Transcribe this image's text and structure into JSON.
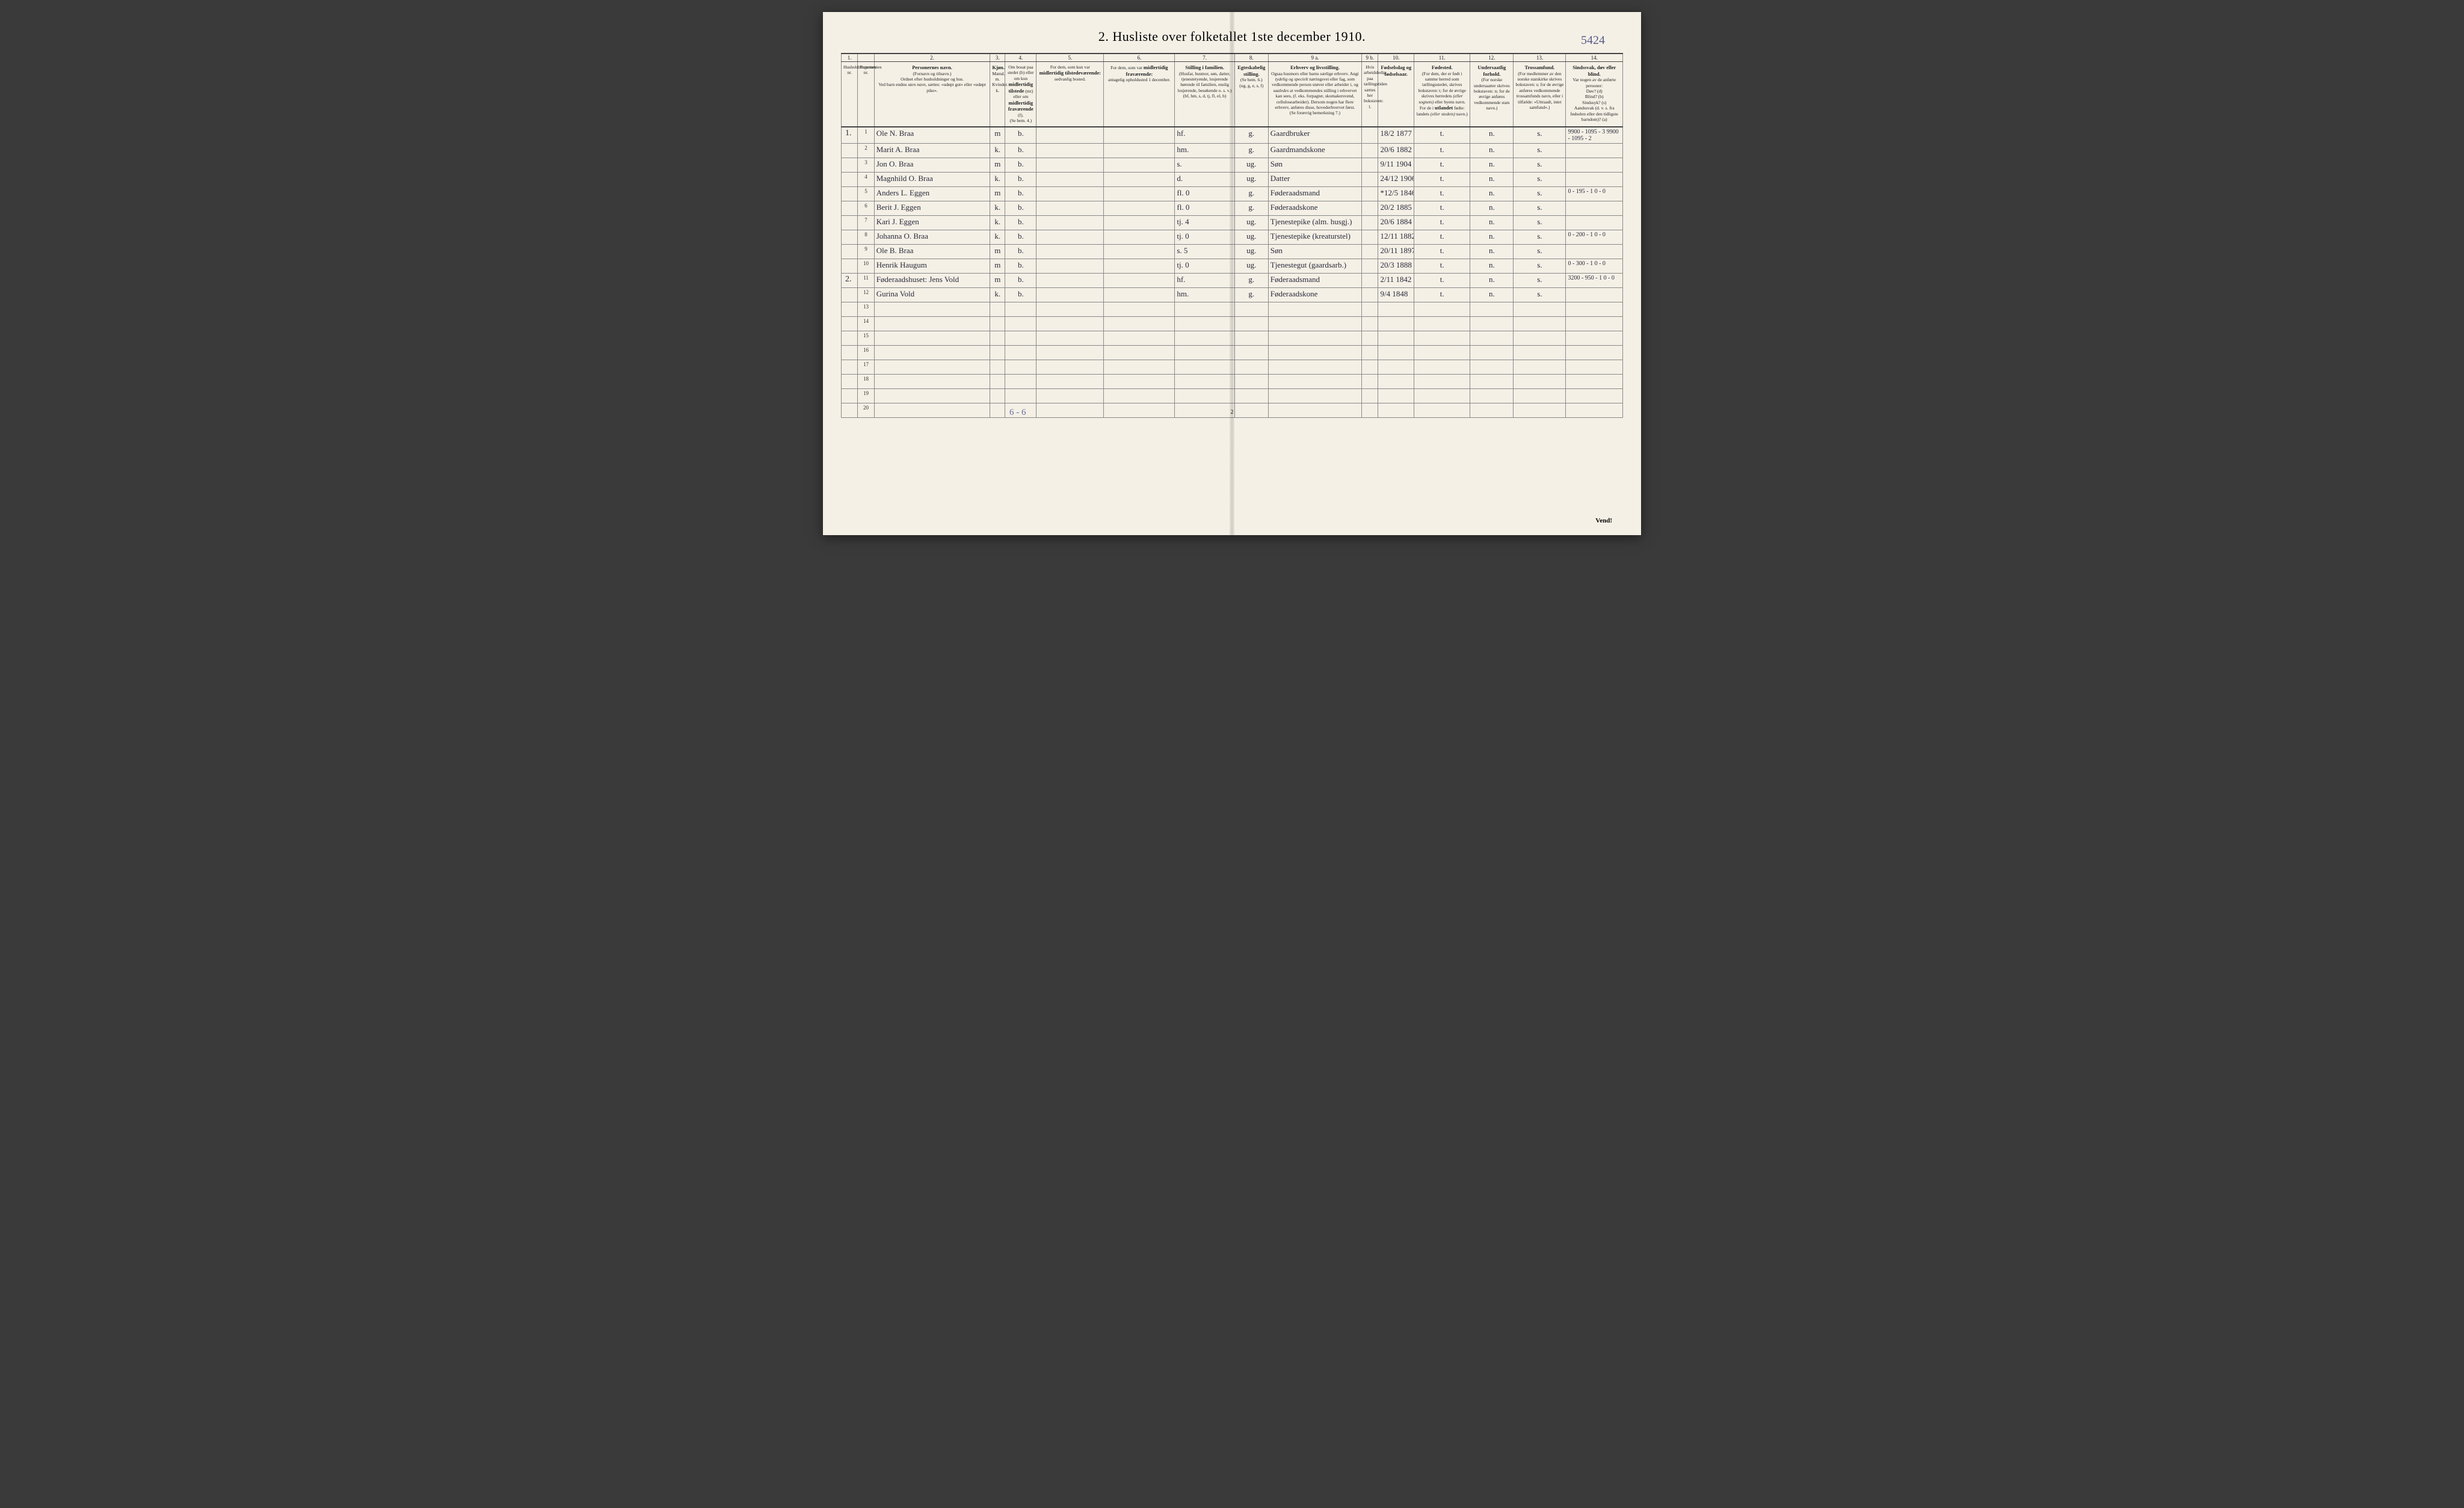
{
  "title": "2.  Husliste over folketallet 1ste december 1910.",
  "page_annotation": "5424",
  "footer": "Vend!",
  "bottom_page_num": "2",
  "tally": "6 - 6",
  "colors": {
    "paper": "#f4f0e6",
    "ink": "#222222",
    "rule": "#888888",
    "handwriting": "#2a2a3a",
    "pencil": "#6a6aa0"
  },
  "col_widths_pct": [
    2.2,
    2.2,
    15.5,
    2.0,
    4.2,
    9.0,
    9.5,
    8.0,
    4.5,
    12.5,
    2.2,
    4.8,
    7.5,
    5.8,
    7.0,
    7.6
  ],
  "column_numbers": [
    "1.",
    "",
    "2.",
    "3.",
    "4.",
    "5.",
    "6.",
    "7.",
    "8.",
    "9 a.",
    "9 b.",
    "10.",
    "11.",
    "12.",
    "13.",
    "14."
  ],
  "headers": [
    {
      "html": "Husholdningernes nr."
    },
    {
      "html": "Personernes nr."
    },
    {
      "html": "<strong>Personernes navn.</strong><br>(Fornavn og tilnavn.)<br>Ordnet efter husholdninger og hus.<br>Ved barn endnu <em>uten navn</em>, sættes: «udøpt gut» eller «udøpt pike»."
    },
    {
      "html": "<strong>Kjøn.</strong><br>Mænd. m.<br>Kvinder. k."
    },
    {
      "html": "Om bosat paa stedet (b) eller om kun <strong>midlertidig tilstede</strong> (mt) eller om <strong>midlertidig fraværende</strong> (f).<br>(Se bem. 4.)"
    },
    {
      "html": "For dem, som kun var <strong>midlertidig tilstedeværende:</strong><br>sedvanlig bosted."
    },
    {
      "html": "For dem, som var <strong>midlertidig fraværende:</strong><br>antagelig opholdssted 1 december."
    },
    {
      "html": "<strong>Stilling i familien.</strong><br>(Husfar, husmor, søn, datter, tjenestetyende, losjerende hørende til familien, enslig losjerende, besøkende o. s. v.)<br>(hf, hm, s, d, tj, fl, el, b)"
    },
    {
      "html": "<strong>Egteskabelig stilling.</strong><br>(Se bem. 6.)<br>(ug, g, e, s, f)"
    },
    {
      "html": "<strong>Erhverv og livsstilling.</strong><br>Ogsaa husmors eller barns særlige erhverv. Angi <em>tydelig og specielt</em> næringsvei eller fag, som vedkommende person utøver eller arbeider i, og <em>saaledes</em> at vedkommendes stilling i erhvervet kan sees, (f. eks. forpagter, skomakersvend, cellulosearbeider). Dersom nogen har flere erhverv, anføres disse, hovederhvervet først.<br>(Se forøvrig bemerkning 7.)"
    },
    {
      "html": "Hvis arbeidsledig paa tællingstiden sættes her bokstaven: l."
    },
    {
      "html": "<strong>Fødselsdag og fødselsaar.</strong>"
    },
    {
      "html": "<strong>Fødested.</strong><br>(For dem, der er født i samme herred som tællingsstedet, skrives bokstaven: t; for de øvrige skrives herredets <em>(eller sognets)</em> eller byens navn. For de i <strong>utlandet</strong> fødte: landets <em>(eller stedets)</em> navn.)"
    },
    {
      "html": "<strong>Undersaatlig forhold.</strong><br>(For norske undersaatter skrives bokstaven: n; for de øvrige anføres vedkommende stats navn.)"
    },
    {
      "html": "<strong>Trossamfund.</strong><br>(For medlemmer av den norske statskirke skrives bokstaven: s; for de øvrige anføres vedkommende trossamfunds navn, eller i tilfælde: «Uttraadt, intet samfund».)"
    },
    {
      "html": "<strong>Sindssvak, døv eller blind.</strong><br>Var nogen av de anførte personer:<br>Døv? (d)<br>Blind? (b)<br>Sindssyk? (s)<br>Aandssvak (d. v. s. fra fødselen eller den tidligste barndom)? (a)"
    }
  ],
  "rows": [
    {
      "hh": "1.",
      "n": "1",
      "name": "Ole N. Braa",
      "sex": "m",
      "res": "b.",
      "c5": "",
      "c6": "",
      "fam": "hf.",
      "mar": "g.",
      "occ": "Gaardbruker",
      "c9b": "",
      "dob": "18/2 1877",
      "birthpl": "t.",
      "nat": "n.",
      "rel": "s.",
      "c14": "9900 - 1095 - 3   9900 - 1095 - 2"
    },
    {
      "hh": "",
      "n": "2",
      "name": "Marit A. Braa",
      "sex": "k.",
      "res": "b.",
      "c5": "",
      "c6": "",
      "fam": "hm.",
      "mar": "g.",
      "occ": "Gaardmandskone",
      "c9b": "",
      "dob": "20/6 1882",
      "birthpl": "t.",
      "nat": "n.",
      "rel": "s.",
      "c14": ""
    },
    {
      "hh": "",
      "n": "3",
      "name": "Jon O. Braa",
      "sex": "m",
      "res": "b.",
      "c5": "",
      "c6": "",
      "fam": "s.",
      "mar": "ug.",
      "occ": "Søn",
      "c9b": "",
      "dob": "9/11 1904",
      "birthpl": "t.",
      "nat": "n.",
      "rel": "s.",
      "c14": ""
    },
    {
      "hh": "",
      "n": "4",
      "name": "Magnhild O. Braa",
      "sex": "k.",
      "res": "b.",
      "c5": "",
      "c6": "",
      "fam": "d.",
      "mar": "ug.",
      "occ": "Datter",
      "c9b": "",
      "dob": "24/12 1906",
      "birthpl": "t.",
      "nat": "n.",
      "rel": "s.",
      "c14": ""
    },
    {
      "hh": "",
      "n": "5",
      "name": "Anders L. Eggen",
      "sex": "m",
      "res": "b.",
      "c5": "",
      "c6": "",
      "fam": "fl.       0",
      "mar": "g.",
      "occ": "Føderaadsmand",
      "c9b": "",
      "dob": "*12/5 1846",
      "birthpl": "t.",
      "nat": "n.",
      "rel": "s.",
      "c14": "0 - 195 - 1   0 - 0"
    },
    {
      "hh": "",
      "n": "6",
      "name": "Berit J. Eggen",
      "sex": "k.",
      "res": "b.",
      "c5": "",
      "c6": "",
      "fam": "fl.       0",
      "mar": "g.",
      "occ": "Føderaadskone",
      "c9b": "",
      "dob": "20/2 1885",
      "birthpl": "t.",
      "nat": "n.",
      "rel": "s.",
      "c14": ""
    },
    {
      "hh": "",
      "n": "7",
      "name": "Kari J. Eggen",
      "sex": "k.",
      "res": "b.",
      "c5": "",
      "c6": "",
      "fam": "tj.       4",
      "mar": "ug.",
      "occ": "Tjenestepike (alm. husgj.)",
      "c9b": "",
      "dob": "20/6 1884",
      "birthpl": "t.",
      "nat": "n.",
      "rel": "s.",
      "c14": ""
    },
    {
      "hh": "",
      "n": "8",
      "name": "Johanna O. Braa",
      "sex": "k.",
      "res": "b.",
      "c5": "",
      "c6": "",
      "fam": "tj.       0",
      "mar": "ug.",
      "occ": "Tjenestepike (kreaturstel)",
      "c9b": "",
      "dob": "12/11 1882",
      "birthpl": "t.",
      "nat": "n.",
      "rel": "s.",
      "c14": "0 - 200 - 1   0 - 0"
    },
    {
      "hh": "",
      "n": "9",
      "name": "Ole B. Braa",
      "sex": "m",
      "res": "b.",
      "c5": "",
      "c6": "",
      "fam": "s.        5",
      "mar": "ug.",
      "occ": "Søn",
      "c9b": "",
      "dob": "20/11 1897",
      "birthpl": "t.",
      "nat": "n.",
      "rel": "s.",
      "c14": ""
    },
    {
      "hh": "",
      "n": "10",
      "name": "Henrik Haugum",
      "sex": "m",
      "res": "b.",
      "c5": "",
      "c6": "",
      "fam": "tj.       0",
      "mar": "ug.",
      "occ": "Tjenestegut (gaardsarb.)",
      "c9b": "",
      "dob": "20/3 1888",
      "birthpl": "t.",
      "nat": "n.",
      "rel": "s.",
      "c14": "0 - 300 - 1   0 - 0"
    },
    {
      "hh": "2.",
      "n": "11",
      "name": "Føderaadshuset: Jens Vold",
      "sex": "m",
      "res": "b.",
      "c5": "",
      "c6": "",
      "fam": "hf.",
      "mar": "g.",
      "occ": "Føderaadsmand",
      "c9b": "",
      "dob": "2/11 1842",
      "birthpl": "t.",
      "nat": "n.",
      "rel": "s.",
      "c14": "3200 - 950 - 1   0 - 0"
    },
    {
      "hh": "",
      "n": "12",
      "name": "Gurina Vold",
      "sex": "k.",
      "res": "b.",
      "c5": "",
      "c6": "",
      "fam": "hm.",
      "mar": "g.",
      "occ": "Føderaadskone",
      "c9b": "",
      "dob": "9/4 1848",
      "birthpl": "t.",
      "nat": "n.",
      "rel": "s.",
      "c14": ""
    },
    {
      "hh": "",
      "n": "13",
      "name": "",
      "sex": "",
      "res": "",
      "c5": "",
      "c6": "",
      "fam": "",
      "mar": "",
      "occ": "",
      "c9b": "",
      "dob": "",
      "birthpl": "",
      "nat": "",
      "rel": "",
      "c14": ""
    },
    {
      "hh": "",
      "n": "14",
      "name": "",
      "sex": "",
      "res": "",
      "c5": "",
      "c6": "",
      "fam": "",
      "mar": "",
      "occ": "",
      "c9b": "",
      "dob": "",
      "birthpl": "",
      "nat": "",
      "rel": "",
      "c14": ""
    },
    {
      "hh": "",
      "n": "15",
      "name": "",
      "sex": "",
      "res": "",
      "c5": "",
      "c6": "",
      "fam": "",
      "mar": "",
      "occ": "",
      "c9b": "",
      "dob": "",
      "birthpl": "",
      "nat": "",
      "rel": "",
      "c14": ""
    },
    {
      "hh": "",
      "n": "16",
      "name": "",
      "sex": "",
      "res": "",
      "c5": "",
      "c6": "",
      "fam": "",
      "mar": "",
      "occ": "",
      "c9b": "",
      "dob": "",
      "birthpl": "",
      "nat": "",
      "rel": "",
      "c14": ""
    },
    {
      "hh": "",
      "n": "17",
      "name": "",
      "sex": "",
      "res": "",
      "c5": "",
      "c6": "",
      "fam": "",
      "mar": "",
      "occ": "",
      "c9b": "",
      "dob": "",
      "birthpl": "",
      "nat": "",
      "rel": "",
      "c14": ""
    },
    {
      "hh": "",
      "n": "18",
      "name": "",
      "sex": "",
      "res": "",
      "c5": "",
      "c6": "",
      "fam": "",
      "mar": "",
      "occ": "",
      "c9b": "",
      "dob": "",
      "birthpl": "",
      "nat": "",
      "rel": "",
      "c14": ""
    },
    {
      "hh": "",
      "n": "19",
      "name": "",
      "sex": "",
      "res": "",
      "c5": "",
      "c6": "",
      "fam": "",
      "mar": "",
      "occ": "",
      "c9b": "",
      "dob": "",
      "birthpl": "",
      "nat": "",
      "rel": "",
      "c14": ""
    },
    {
      "hh": "",
      "n": "20",
      "name": "",
      "sex": "",
      "res": "",
      "c5": "",
      "c6": "",
      "fam": "",
      "mar": "",
      "occ": "",
      "c9b": "",
      "dob": "",
      "birthpl": "",
      "nat": "",
      "rel": "",
      "c14": ""
    }
  ]
}
